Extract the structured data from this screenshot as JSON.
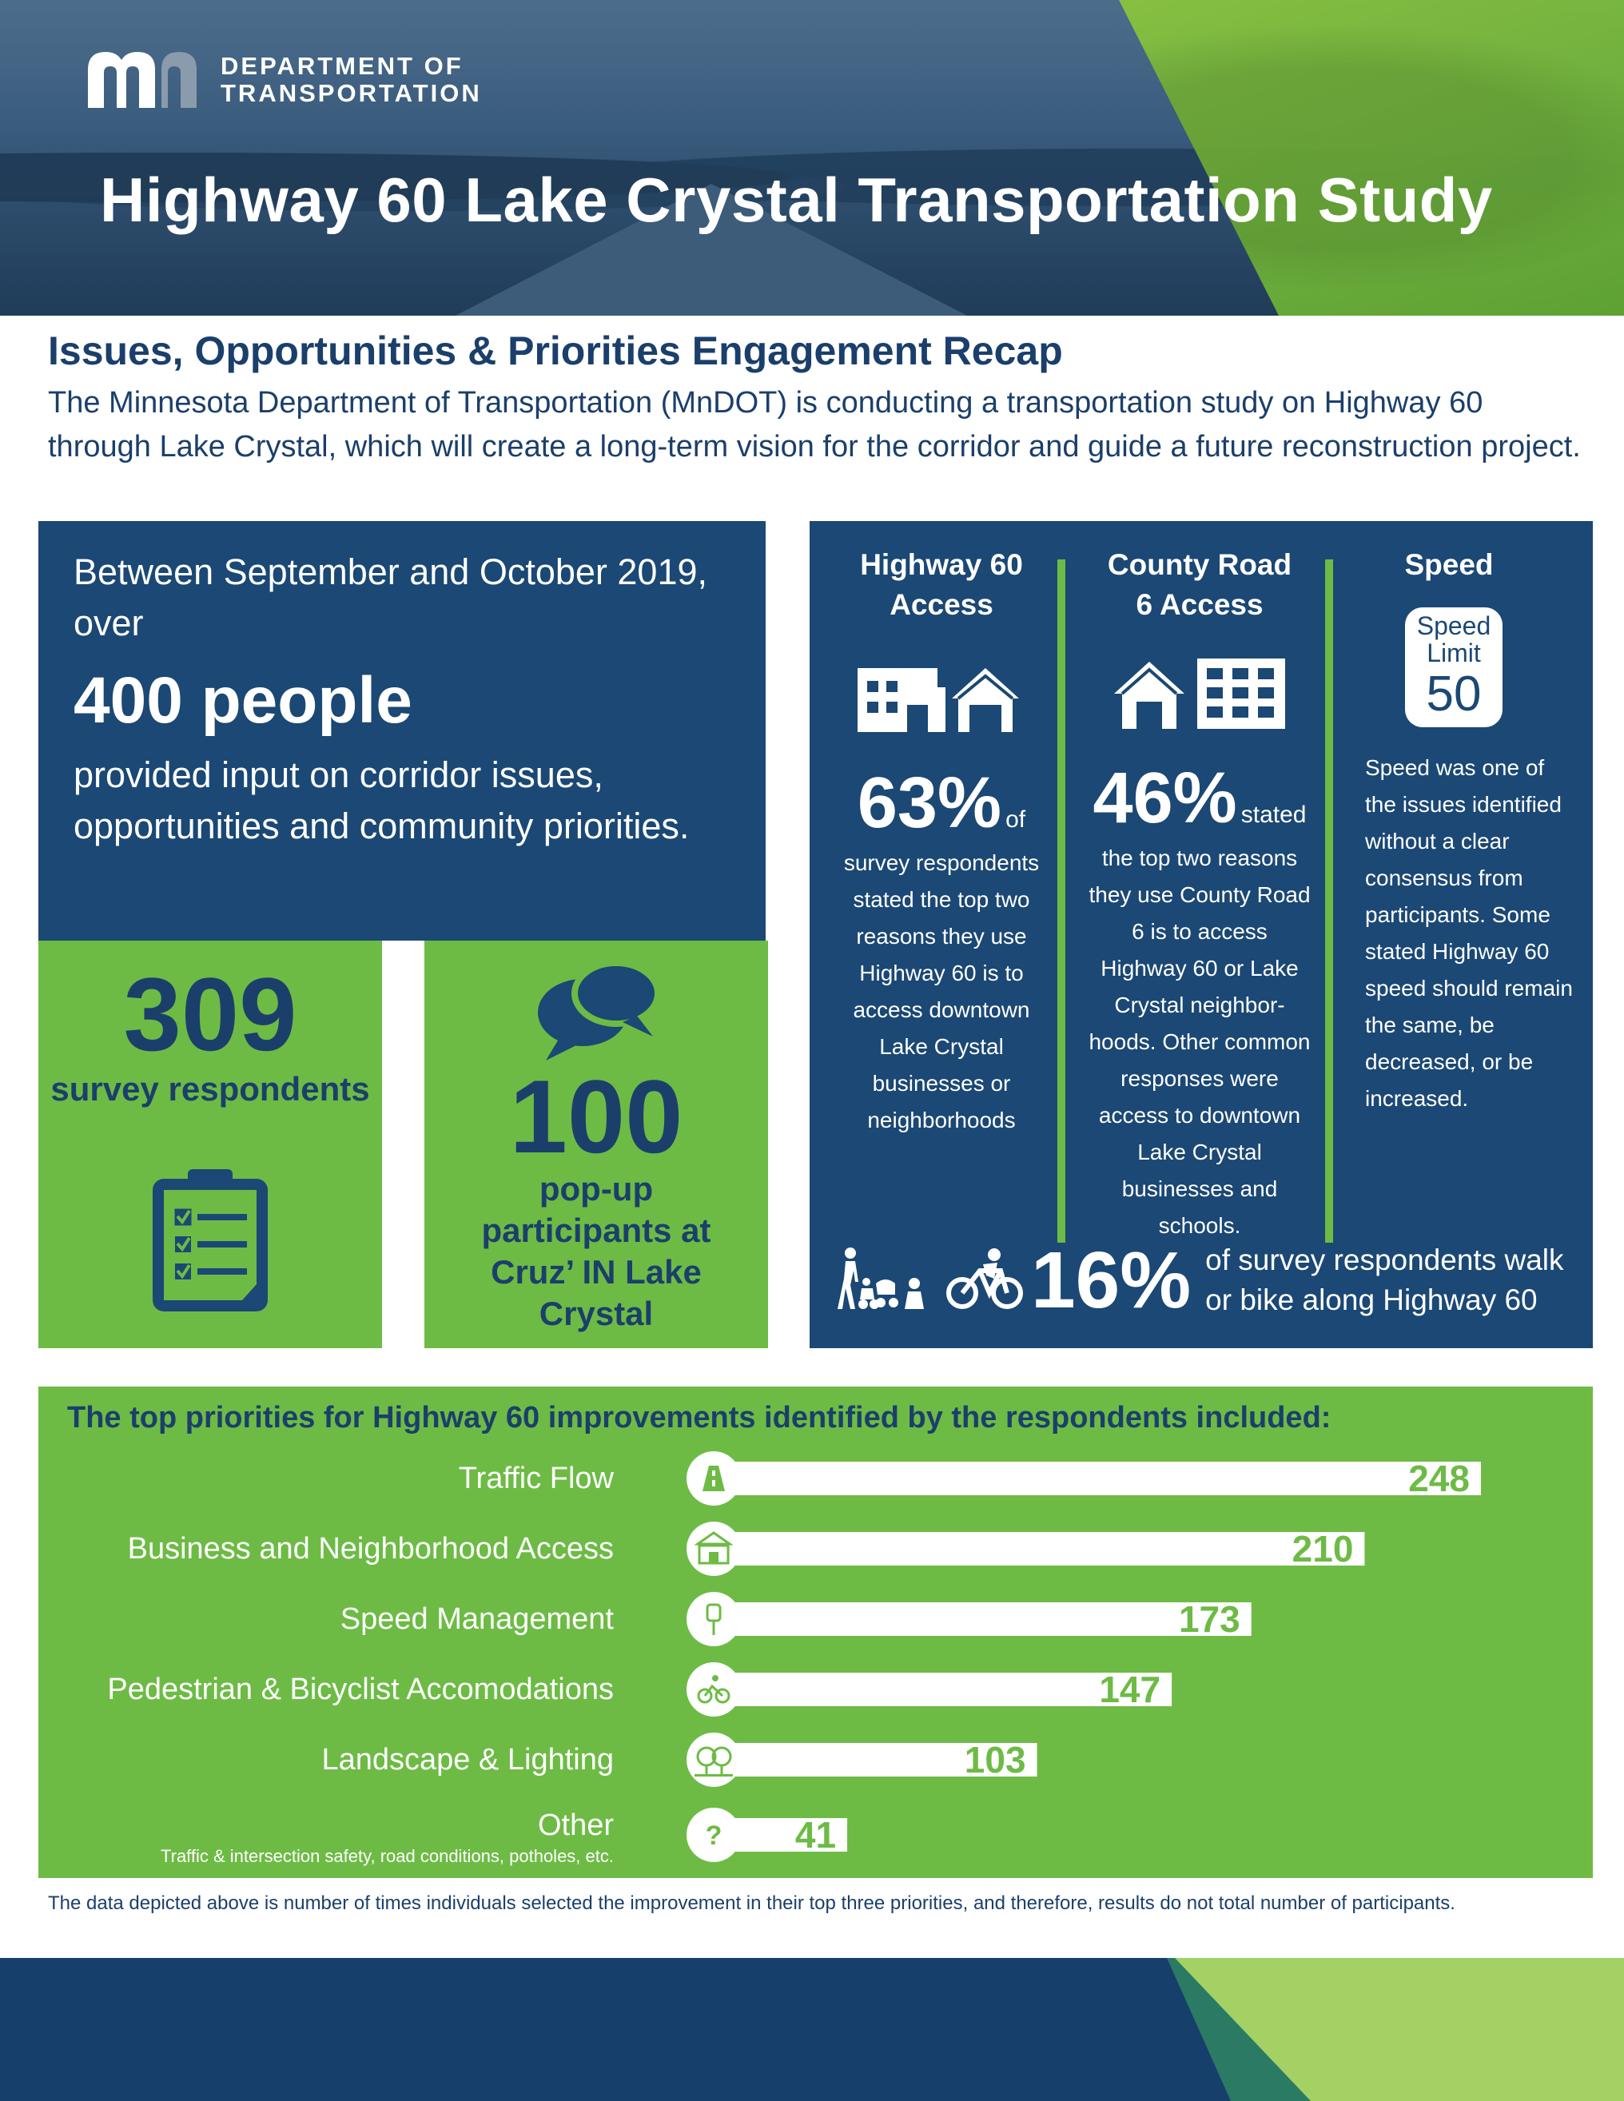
{
  "header": {
    "logo_line1": "DEPARTMENT OF",
    "logo_line2": "TRANSPORTATION",
    "title": "Highway 60 Lake Crystal Transportation Study"
  },
  "intro": {
    "subtitle": "Issues, Opportunities & Priorities Engagement Recap",
    "text": "The Minnesota Department of Transportation (MnDOT) is conducting a transportation study on Highway 60 through Lake Crystal, which will create a long-term vision for the corridor and guide a future reconstruction project."
  },
  "people": {
    "lead": "Between September and October 2019, over",
    "big": "400 people",
    "tail": "provided input on corridor issues, opportunities and community priorities."
  },
  "survey": {
    "number": "309",
    "label": "survey respondents"
  },
  "popup": {
    "number": "100",
    "label": "pop-up participants at Cruz’ IN Lake Crystal"
  },
  "access": {
    "col1": {
      "head": "Highway 60 Access",
      "pct": "63%",
      "pct_suffix": "of",
      "body": "survey respondents stated the top two reasons they use Highway 60 is to access downtown Lake Crystal businesses or neighborhoods"
    },
    "col2": {
      "head": "County Road 6 Access",
      "pct": "46%",
      "pct_suffix": "stated",
      "body": "the top two reasons they use County Road 6 is to access Highway 60 or Lake Crystal neighbor-hoods. Other common responses were access to downtown Lake Crystal businesses and schools."
    },
    "col3": {
      "head": "Speed",
      "sign_line1": "Speed",
      "sign_line2": "Limit",
      "sign_value": "50",
      "body": "Speed was one of the issues identified without a clear consensus from participants. Some stated Highway 60 speed should remain the same, be decreased, or be increased."
    },
    "walk_pct": "16%",
    "walk_text": "of survey respondents walk or bike along Highway 60"
  },
  "chart_data": {
    "type": "bar",
    "title": "The top priorities for Highway 60 improvements identified by the respondents included:",
    "categories": [
      "Traffic Flow",
      "Business and Neighborhood Access",
      "Speed Management",
      "Pedestrian & Bicyclist Accomodations",
      "Landscape & Lighting",
      "Other"
    ],
    "values": [
      248,
      210,
      173,
      147,
      103,
      41
    ],
    "category_note": {
      "Other": "Traffic & intersection safety, road conditions, potholes, etc."
    },
    "icons": [
      "road-icon",
      "storefront-icon",
      "speed-sign-icon",
      "bicyclist-icon",
      "trees-icon",
      "question-icon"
    ],
    "value_labels": [
      "248",
      "210",
      "173",
      "147",
      "103",
      "41"
    ],
    "xlabel": "",
    "ylabel": "",
    "orientation": "horizontal",
    "grid": false,
    "legend": "none",
    "bar_color": "#ffffff",
    "label_color": "#6dbb45"
  },
  "footnote": "The data depicted above is number of times individuals selected the improvement in their top three priorities, and therefore, results do not total number of participants.",
  "colors": {
    "navy": "#1b4874",
    "green": "#6dbb45",
    "text_navy": "#1b3f6b"
  }
}
